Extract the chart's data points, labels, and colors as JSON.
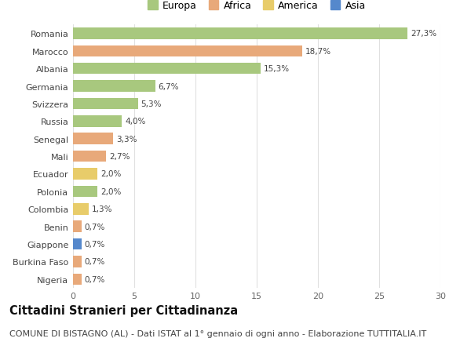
{
  "categories": [
    "Romania",
    "Marocco",
    "Albania",
    "Germania",
    "Svizzera",
    "Russia",
    "Senegal",
    "Mali",
    "Ecuador",
    "Polonia",
    "Colombia",
    "Benin",
    "Giappone",
    "Burkina Faso",
    "Nigeria"
  ],
  "values": [
    27.3,
    18.7,
    15.3,
    6.7,
    5.3,
    4.0,
    3.3,
    2.7,
    2.0,
    2.0,
    1.3,
    0.7,
    0.7,
    0.7,
    0.7
  ],
  "labels": [
    "27,3%",
    "18,7%",
    "15,3%",
    "6,7%",
    "5,3%",
    "4,0%",
    "3,3%",
    "2,7%",
    "2,0%",
    "2,0%",
    "1,3%",
    "0,7%",
    "0,7%",
    "0,7%",
    "0,7%"
  ],
  "continents": [
    "Europa",
    "Africa",
    "Europa",
    "Europa",
    "Europa",
    "Europa",
    "Africa",
    "Africa",
    "America",
    "Europa",
    "America",
    "Africa",
    "Asia",
    "Africa",
    "Africa"
  ],
  "continent_colors": {
    "Europa": "#a8c87e",
    "Africa": "#e8a97a",
    "America": "#e8cc6a",
    "Asia": "#5588cc"
  },
  "legend_order": [
    "Europa",
    "Africa",
    "America",
    "Asia"
  ],
  "title": "Cittadini Stranieri per Cittadinanza",
  "subtitle": "COMUNE DI BISTAGNO (AL) - Dati ISTAT al 1° gennaio di ogni anno - Elaborazione TUTTITALIA.IT",
  "xlim": [
    0,
    30
  ],
  "xticks": [
    0,
    5,
    10,
    15,
    20,
    25,
    30
  ],
  "background_color": "#ffffff",
  "grid_color": "#e0e0e0",
  "bar_height": 0.65,
  "title_fontsize": 10.5,
  "subtitle_fontsize": 8,
  "label_fontsize": 7.5,
  "tick_fontsize": 8,
  "legend_fontsize": 9
}
